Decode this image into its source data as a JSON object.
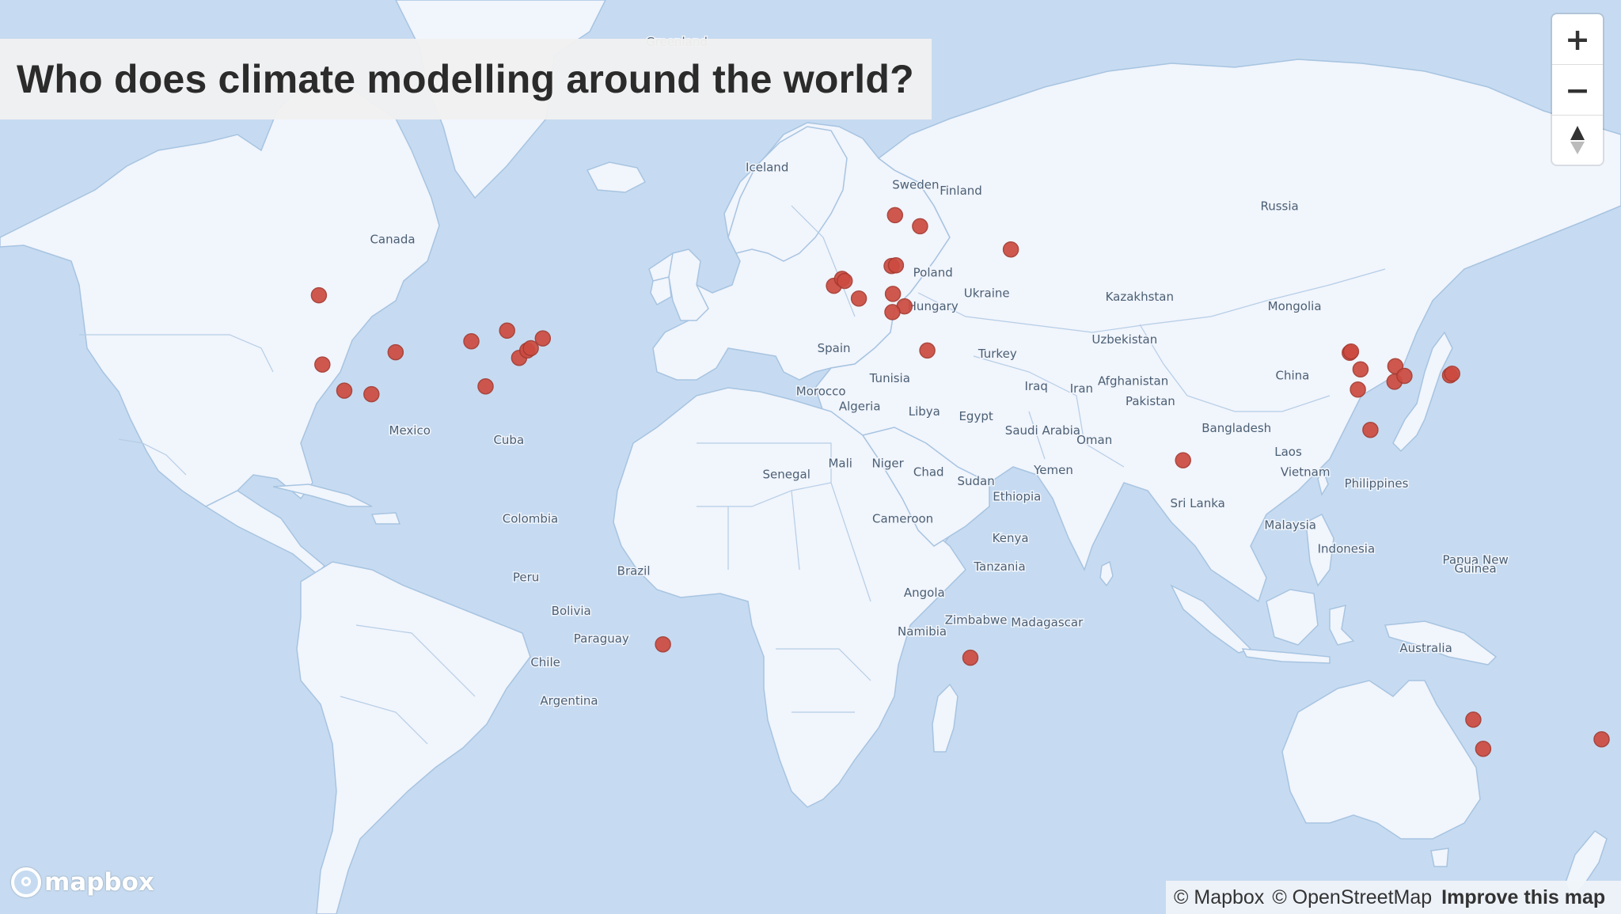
{
  "title": "Who does climate modelling around the world?",
  "controls": {
    "zoom_in": "+",
    "zoom_out": "−",
    "compass": "▲"
  },
  "logo": {
    "text": "mapbox"
  },
  "attribution": {
    "mapbox": "© Mapbox",
    "osm": "© OpenStreetMap",
    "improve": "Improve this map"
  },
  "colors": {
    "water": "#c6dbf1",
    "land": "#f1f5fc",
    "marker": "#cd4b40"
  },
  "labels": [
    {
      "id": "greenland",
      "text": "Greenland",
      "lon": -40.0,
      "lat": 74.5
    },
    {
      "id": "iceland",
      "text": "Iceland",
      "lon": -19.0,
      "lat": 64.6
    },
    {
      "id": "sweden",
      "text": "Sweden",
      "lon": 15.5,
      "lat": 62.8
    },
    {
      "id": "finland",
      "text": "Finland",
      "lon": 26.0,
      "lat": 62.2
    },
    {
      "id": "russia",
      "text": "Russia",
      "lon": 100.0,
      "lat": 60.5
    },
    {
      "id": "canada",
      "text": "Canada",
      "lon": -106.0,
      "lat": 56.5
    },
    {
      "id": "poland",
      "text": "Poland",
      "lon": 19.5,
      "lat": 52.0
    },
    {
      "id": "ukraine",
      "text": "Ukraine",
      "lon": 32.0,
      "lat": 49.0
    },
    {
      "id": "kazakhstan",
      "text": "Kazakhstan",
      "lon": 67.5,
      "lat": 48.5
    },
    {
      "id": "mongolia",
      "text": "Mongolia",
      "lon": 103.5,
      "lat": 47.0
    },
    {
      "id": "hungary",
      "text": "Hungary",
      "lon": 19.5,
      "lat": 47.0
    },
    {
      "id": "uzbekistan",
      "text": "Uzbekistan",
      "lon": 64.0,
      "lat": 41.5
    },
    {
      "id": "spain",
      "text": "Spain",
      "lon": -3.5,
      "lat": 40.0
    },
    {
      "id": "turkey",
      "text": "Turkey",
      "lon": 34.5,
      "lat": 39.0
    },
    {
      "id": "china",
      "text": "China",
      "lon": 103.0,
      "lat": 35.0
    },
    {
      "id": "tunisia",
      "text": "Tunisia",
      "lon": 9.5,
      "lat": 34.5
    },
    {
      "id": "afghanistan",
      "text": "Afghanistan",
      "lon": 66.0,
      "lat": 34.0
    },
    {
      "id": "iraq",
      "text": "Iraq",
      "lon": 43.5,
      "lat": 33.0
    },
    {
      "id": "iran",
      "text": "Iran",
      "lon": 54.0,
      "lat": 32.5
    },
    {
      "id": "morocco",
      "text": "Morocco",
      "lon": -6.5,
      "lat": 32.0
    },
    {
      "id": "pakistan",
      "text": "Pakistan",
      "lon": 70.0,
      "lat": 30.0
    },
    {
      "id": "algeria",
      "text": "Algeria",
      "lon": 2.5,
      "lat": 29.0
    },
    {
      "id": "libya",
      "text": "Libya",
      "lon": 17.5,
      "lat": 28.0
    },
    {
      "id": "egypt",
      "text": "Egypt",
      "lon": 29.5,
      "lat": 27.0
    },
    {
      "id": "bangladesh",
      "text": "Bangladesh",
      "lon": 90.0,
      "lat": 24.5
    },
    {
      "id": "saudi-arabia",
      "text": "Saudi Arabia",
      "lon": 45.0,
      "lat": 24.0
    },
    {
      "id": "mexico",
      "text": "Mexico",
      "lon": -102.0,
      "lat": 24.0
    },
    {
      "id": "oman",
      "text": "Oman",
      "lon": 57.0,
      "lat": 22.0
    },
    {
      "id": "cuba",
      "text": "Cuba",
      "lon": -79.0,
      "lat": 22.0
    },
    {
      "id": "laos",
      "text": "Laos",
      "lon": 102.0,
      "lat": 19.5
    },
    {
      "id": "yemen",
      "text": "Yemen",
      "lon": 47.5,
      "lat": 15.5
    },
    {
      "id": "mali",
      "text": "Mali",
      "lon": -2.0,
      "lat": 17.0
    },
    {
      "id": "niger",
      "text": "Niger",
      "lon": 9.0,
      "lat": 17.0
    },
    {
      "id": "vietnam",
      "text": "Vietnam",
      "lon": 106.0,
      "lat": 15.0
    },
    {
      "id": "senegal",
      "text": "Senegal",
      "lon": -14.5,
      "lat": 14.5
    },
    {
      "id": "chad",
      "text": "Chad",
      "lon": 18.5,
      "lat": 15.0
    },
    {
      "id": "sudan",
      "text": "Sudan",
      "lon": 29.5,
      "lat": 13.0
    },
    {
      "id": "philippines",
      "text": "Philippines",
      "lon": 122.5,
      "lat": 12.5
    },
    {
      "id": "ethiopia",
      "text": "Ethiopia",
      "lon": 39.0,
      "lat": 9.5
    },
    {
      "id": "sri-lanka",
      "text": "Sri Lanka",
      "lon": 81.0,
      "lat": 8.0
    },
    {
      "id": "colombia",
      "text": "Colombia",
      "lon": -74.0,
      "lat": 4.5
    },
    {
      "id": "cameroon",
      "text": "Cameroon",
      "lon": 12.5,
      "lat": 4.5
    },
    {
      "id": "malaysia",
      "text": "Malaysia",
      "lon": 102.5,
      "lat": 3.0
    },
    {
      "id": "kenya",
      "text": "Kenya",
      "lon": 37.5,
      "lat": 0.0
    },
    {
      "id": "indonesia",
      "text": "Indonesia",
      "lon": 115.5,
      "lat": -2.5
    },
    {
      "id": "papua-new-guinea-1",
      "text": "Papua New",
      "lon": 145.5,
      "lat": -5.0
    },
    {
      "id": "papua-new-guinea-2",
      "text": "Guinea",
      "lon": 145.5,
      "lat": -7.0
    },
    {
      "id": "tanzania",
      "text": "Tanzania",
      "lon": 35.0,
      "lat": -6.5
    },
    {
      "id": "peru",
      "text": "Peru",
      "lon": -75.0,
      "lat": -9.0
    },
    {
      "id": "brazil",
      "text": "Brazil",
      "lon": -50.0,
      "lat": -7.5
    },
    {
      "id": "angola",
      "text": "Angola",
      "lon": 17.5,
      "lat": -12.5
    },
    {
      "id": "bolivia",
      "text": "Bolivia",
      "lon": -64.5,
      "lat": -16.5
    },
    {
      "id": "zimbabwe",
      "text": "Zimbabwe",
      "lon": 29.5,
      "lat": -18.5
    },
    {
      "id": "madagascar",
      "text": "Madagascar",
      "lon": 46.0,
      "lat": -19.0
    },
    {
      "id": "namibia",
      "text": "Namibia",
      "lon": 17.0,
      "lat": -21.0
    },
    {
      "id": "paraguay",
      "text": "Paraguay",
      "lon": -57.5,
      "lat": -22.5
    },
    {
      "id": "australia",
      "text": "Australia",
      "lon": 134.0,
      "lat": -24.5
    },
    {
      "id": "chile",
      "text": "Chile",
      "lon": -70.5,
      "lat": -27.5
    },
    {
      "id": "argentina",
      "text": "Argentina",
      "lon": -65.0,
      "lat": -35.0
    }
  ],
  "markers": [
    {
      "lon": -123.1,
      "lat": 49.3
    },
    {
      "lon": -122.3,
      "lat": 37.8
    },
    {
      "lon": -117.2,
      "lat": 32.9
    },
    {
      "lon": -105.3,
      "lat": 40.0
    },
    {
      "lon": -110.9,
      "lat": 32.2
    },
    {
      "lon": -87.7,
      "lat": 41.9
    },
    {
      "lon": -79.4,
      "lat": 43.7
    },
    {
      "lon": -84.4,
      "lat": 33.7
    },
    {
      "lon": -76.6,
      "lat": 39.0
    },
    {
      "lon": -74.7,
      "lat": 40.3
    },
    {
      "lon": -73.9,
      "lat": 40.7
    },
    {
      "lon": -71.1,
      "lat": 42.4
    },
    {
      "lon": -43.2,
      "lat": -22.9
    },
    {
      "lon": -3.5,
      "lat": 50.7
    },
    {
      "lon": -1.6,
      "lat": 51.7
    },
    {
      "lon": -1.0,
      "lat": 51.4
    },
    {
      "lon": 2.3,
      "lat": 48.8
    },
    {
      "lon": 9.9,
      "lat": 53.5
    },
    {
      "lon": 10.9,
      "lat": 53.6
    },
    {
      "lon": 10.7,
      "lat": 59.9
    },
    {
      "lon": 16.5,
      "lat": 58.6
    },
    {
      "lon": 10.2,
      "lat": 49.5
    },
    {
      "lon": 12.9,
      "lat": 47.6
    },
    {
      "lon": 10.1,
      "lat": 46.7
    },
    {
      "lon": 18.2,
      "lat": 40.3
    },
    {
      "lon": 37.6,
      "lat": 55.7
    },
    {
      "lon": 28.2,
      "lat": -25.7
    },
    {
      "lon": 77.6,
      "lat": 18.5
    },
    {
      "lon": 116.3,
      "lat": 39.9
    },
    {
      "lon": 116.6,
      "lat": 40.1
    },
    {
      "lon": 118.8,
      "lat": 36.9
    },
    {
      "lon": 118.2,
      "lat": 33.1
    },
    {
      "lon": 121.1,
      "lat": 25.0
    },
    {
      "lon": 126.9,
      "lat": 37.5
    },
    {
      "lon": 126.7,
      "lat": 34.6
    },
    {
      "lon": 129.0,
      "lat": 35.7
    },
    {
      "lon": 139.6,
      "lat": 35.8
    },
    {
      "lon": 140.1,
      "lat": 36.1
    },
    {
      "lon": 145.0,
      "lat": -37.8
    },
    {
      "lon": 147.3,
      "lat": -42.9
    },
    {
      "lon": 174.8,
      "lat": -41.3
    }
  ]
}
